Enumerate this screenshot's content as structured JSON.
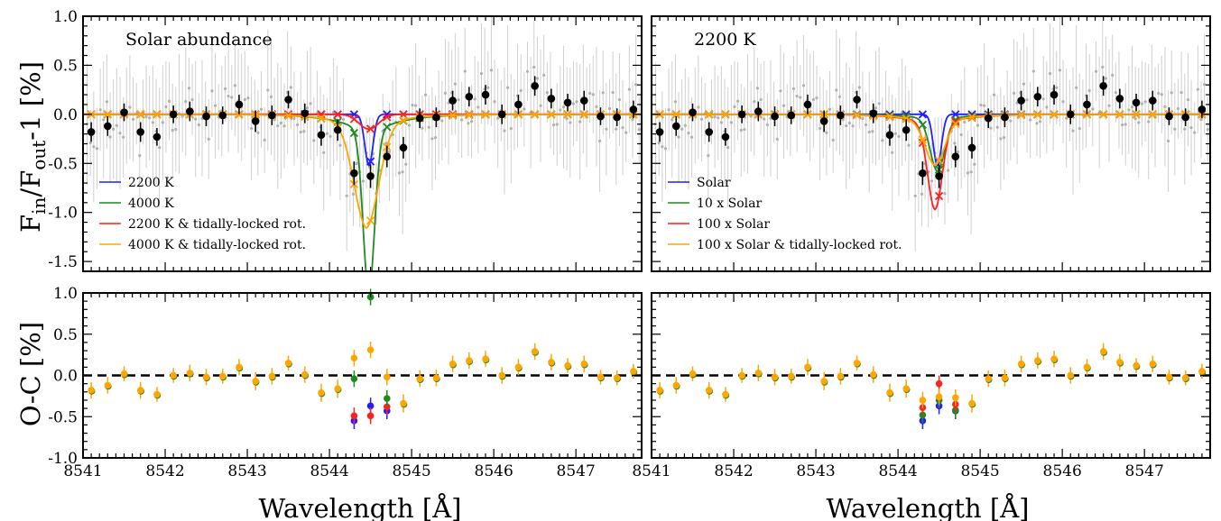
{
  "figure": {
    "ylabel_top": "F",
    "ylabel_top_sub1": "in",
    "ylabel_top_mid": "/F",
    "ylabel_top_sub2": "out",
    "ylabel_top_end": "-1 [%]",
    "ylabel_bottom": "O-C [%]",
    "xlabel": "Wavelength [Å]"
  },
  "colors": {
    "blue": "#1f1fff",
    "green": "#1f8a1f",
    "red": "#ff2020",
    "orange": "#ffa500",
    "black": "#000000",
    "gray": "#bbbbbb"
  },
  "chart_data": [
    {
      "type": "line",
      "panel": "top-left",
      "annotation": "Solar abundance",
      "xlim": [
        8541,
        8547.8
      ],
      "ylim": [
        -1.6,
        1.0
      ],
      "yticks": [
        -1.5,
        -1.0,
        -0.5,
        0.0,
        0.5,
        1.0
      ],
      "legend_position": "bottom-left",
      "observed_binned": {
        "x": [
          8541.1,
          8541.3,
          8541.5,
          8541.7,
          8541.9,
          8542.1,
          8542.3,
          8542.5,
          8542.7,
          8542.9,
          8543.1,
          8543.3,
          8543.5,
          8543.7,
          8543.9,
          8544.1,
          8544.3,
          8544.5,
          8544.7,
          8544.9,
          8545.1,
          8545.3,
          8545.5,
          8545.7,
          8545.9,
          8546.1,
          8546.3,
          8546.5,
          8546.7,
          8546.9,
          8547.1,
          8547.3,
          8547.5,
          8547.7
        ],
        "y": [
          -0.18,
          -0.12,
          0.02,
          -0.18,
          -0.23,
          0.0,
          0.03,
          -0.02,
          -0.01,
          0.1,
          -0.07,
          -0.01,
          0.15,
          0.01,
          -0.21,
          -0.16,
          -0.6,
          -0.63,
          -0.43,
          -0.34,
          -0.04,
          -0.03,
          0.14,
          0.18,
          0.2,
          0.0,
          0.1,
          0.29,
          0.16,
          0.12,
          0.14,
          -0.02,
          -0.03,
          0.05
        ],
        "err": [
          0.1,
          0.1,
          0.09,
          0.1,
          0.09,
          0.09,
          0.1,
          0.1,
          0.09,
          0.1,
          0.11,
          0.1,
          0.09,
          0.1,
          0.11,
          0.11,
          0.12,
          0.12,
          0.11,
          0.11,
          0.1,
          0.1,
          0.1,
          0.1,
          0.1,
          0.1,
          0.1,
          0.1,
          0.1,
          0.09,
          0.1,
          0.09,
          0.09,
          0.09
        ]
      },
      "models": [
        {
          "name": "2200 K",
          "color": "blue",
          "center": 8544.48,
          "depth": 0.52,
          "width": 0.05,
          "wing": 0.0
        },
        {
          "name": "4000 K",
          "color": "green",
          "center": 8544.48,
          "depth": 1.6,
          "width": 0.07,
          "wing": 0.22
        },
        {
          "name": "2200 K & tidally-locked rot.",
          "color": "red",
          "center": 8544.48,
          "depth": 0.15,
          "width": 0.12,
          "wing": 0.0
        },
        {
          "name": "4000 K & tidally-locked rot.",
          "color": "orange",
          "center": 8544.45,
          "depth": 0.98,
          "width": 0.15,
          "wing": 0.18
        }
      ]
    },
    {
      "type": "line",
      "panel": "top-right",
      "annotation": "2200 K",
      "xlim": [
        8541,
        8547.8
      ],
      "ylim": [
        -1.6,
        1.0
      ],
      "legend_position": "bottom-left",
      "models": [
        {
          "name": "Solar",
          "color": "blue",
          "center": 8544.48,
          "depth": 0.52,
          "width": 0.05,
          "wing": 0.0
        },
        {
          "name": "10 x Solar",
          "color": "green",
          "center": 8544.48,
          "depth": 0.52,
          "width": 0.09,
          "wing": 0.06
        },
        {
          "name": "100 x Solar",
          "color": "red",
          "center": 8544.45,
          "depth": 0.85,
          "width": 0.09,
          "wing": 0.12
        },
        {
          "name": "100 x Solar & tidally-locked rot.",
          "color": "orange",
          "center": 8544.45,
          "depth": 0.42,
          "width": 0.12,
          "wing": 0.1
        }
      ]
    },
    {
      "type": "scatter",
      "panel": "bottom-left",
      "xlim": [
        8541,
        8547.8
      ],
      "ylim": [
        -1.0,
        1.0
      ],
      "yticks": [
        -1.0,
        -0.5,
        0.0,
        0.5,
        1.0
      ],
      "xticks": [
        8541,
        8542,
        8543,
        8544,
        8545,
        8546,
        8547
      ],
      "residual_dips": [
        {
          "color": "blue",
          "x": [
            8544.3,
            8544.5,
            8544.7
          ],
          "y": [
            -0.55,
            -0.37,
            -0.43
          ]
        },
        {
          "color": "red",
          "x": [
            8544.3,
            8544.5,
            8544.7
          ],
          "y": [
            -0.49,
            -0.49,
            -0.38
          ]
        },
        {
          "color": "green",
          "x": [
            8544.3,
            8544.5,
            8544.7
          ],
          "y": [
            -0.04,
            0.95,
            -0.28
          ]
        },
        {
          "color": "orange",
          "x": [
            8544.3,
            8544.5,
            8544.7
          ],
          "y": [
            0.21,
            0.31,
            -0.02
          ]
        }
      ]
    },
    {
      "type": "scatter",
      "panel": "bottom-right",
      "xlim": [
        8541,
        8547.8
      ],
      "ylim": [
        -1.0,
        1.0
      ],
      "xticks": [
        8541,
        8542,
        8543,
        8544,
        8545,
        8546,
        8547
      ],
      "residual_dips": [
        {
          "color": "blue",
          "x": [
            8544.3,
            8544.5,
            8544.7
          ],
          "y": [
            -0.55,
            -0.37,
            -0.43
          ]
        },
        {
          "color": "green",
          "x": [
            8544.3,
            8544.5,
            8544.7
          ],
          "y": [
            -0.48,
            -0.3,
            -0.42
          ]
        },
        {
          "color": "red",
          "x": [
            8544.3,
            8544.5,
            8544.7
          ],
          "y": [
            -0.39,
            -0.1,
            -0.35
          ]
        },
        {
          "color": "orange",
          "x": [
            8544.3,
            8544.5,
            8544.7
          ],
          "y": [
            -0.3,
            -0.26,
            -0.27
          ]
        }
      ]
    }
  ]
}
